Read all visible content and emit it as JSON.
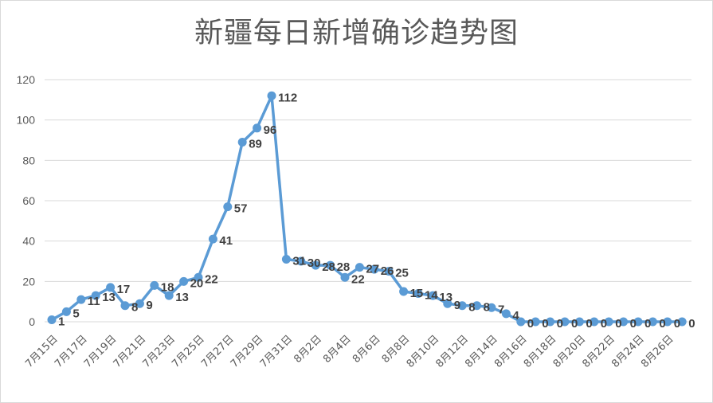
{
  "chart_data": {
    "type": "line",
    "title": "新疆每日新增确诊趋势图",
    "xlabel": "",
    "ylabel": "",
    "ylim": [
      0,
      120
    ],
    "yticks": [
      0,
      20,
      40,
      60,
      80,
      100,
      120
    ],
    "grid": true,
    "legend": "none",
    "colors": {
      "line": "#5b9bd5",
      "grid": "#d9d9d9",
      "text": "#595959"
    },
    "categories": [
      "7月15日",
      "7月16日",
      "7月17日",
      "7月18日",
      "7月19日",
      "7月20日",
      "7月21日",
      "7月22日",
      "7月23日",
      "7月24日",
      "7月25日",
      "7月26日",
      "7月27日",
      "7月28日",
      "7月29日",
      "7月30日",
      "7月31日",
      "8月1日",
      "8月2日",
      "8月3日",
      "8月4日",
      "8月5日",
      "8月6日",
      "8月7日",
      "8月8日",
      "8月9日",
      "8月10日",
      "8月11日",
      "8月12日",
      "8月13日",
      "8月14日",
      "8月15日",
      "8月16日",
      "8月17日",
      "8月18日",
      "8月19日",
      "8月20日",
      "8月21日",
      "8月22日",
      "8月23日",
      "8月24日",
      "8月25日",
      "8月26日",
      "8月27日"
    ],
    "tick_labels": [
      "7月15日",
      "7月17日",
      "7月19日",
      "7月21日",
      "7月23日",
      "7月25日",
      "7月27日",
      "7月29日",
      "7月31日",
      "8月2日",
      "8月4日",
      "8月6日",
      "8月8日",
      "8月10日",
      "8月12日",
      "8月14日",
      "8月16日",
      "8月18日",
      "8月20日",
      "8月22日",
      "8月24日",
      "8月26日"
    ],
    "values": [
      1,
      5,
      11,
      13,
      17,
      8,
      9,
      18,
      13,
      20,
      22,
      41,
      57,
      89,
      96,
      112,
      31,
      30,
      28,
      28,
      22,
      27,
      26,
      25,
      15,
      14,
      13,
      9,
      8,
      8,
      7,
      4,
      0,
      0,
      0,
      0,
      0,
      0,
      0,
      0,
      0,
      0,
      0,
      0
    ]
  }
}
